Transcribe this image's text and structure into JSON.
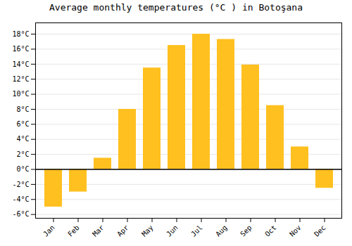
{
  "chart_data": {
    "type": "bar",
    "title": "Average monthly temperatures (°C ) in Botoşana",
    "categories": [
      "Jan",
      "Feb",
      "Mar",
      "Apr",
      "May",
      "Jun",
      "Jul",
      "Aug",
      "Sep",
      "Oct",
      "Nov",
      "Dec"
    ],
    "values": [
      -5.0,
      -3.0,
      1.5,
      8.0,
      13.5,
      16.5,
      18.0,
      17.3,
      13.9,
      8.5,
      3.0,
      -2.5
    ],
    "color": "#FFC020",
    "ylim": [
      -6.5,
      19.5
    ],
    "yticks": [
      {
        "value": -6,
        "label": "-6°C"
      },
      {
        "value": -4,
        "label": "-4°C"
      },
      {
        "value": -2,
        "label": "-2°C"
      },
      {
        "value": 0,
        "label": "0°C"
      },
      {
        "value": 2,
        "label": "2°C"
      },
      {
        "value": 4,
        "label": "4°C"
      },
      {
        "value": 6,
        "label": "6°C"
      },
      {
        "value": 8,
        "label": "8°C"
      },
      {
        "value": 10,
        "label": "10°C"
      },
      {
        "value": 12,
        "label": "12°C"
      },
      {
        "value": 14,
        "label": "14°C"
      },
      {
        "value": 16,
        "label": "16°C"
      },
      {
        "value": 18,
        "label": "18°C"
      }
    ],
    "grid": true
  }
}
